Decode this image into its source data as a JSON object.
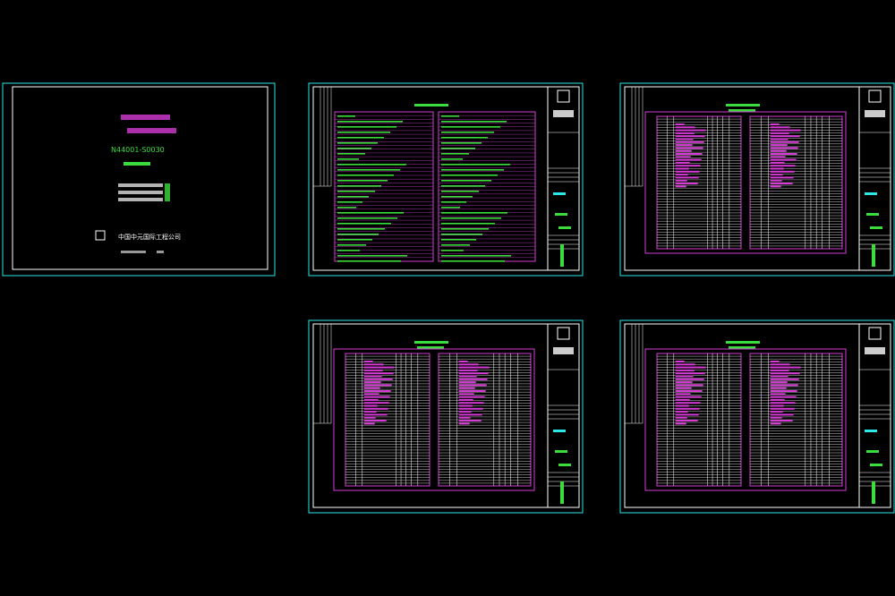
{
  "cover": {
    "drawing_number": "N44001-S0030",
    "company": "中国中元国际工程公司"
  }
}
